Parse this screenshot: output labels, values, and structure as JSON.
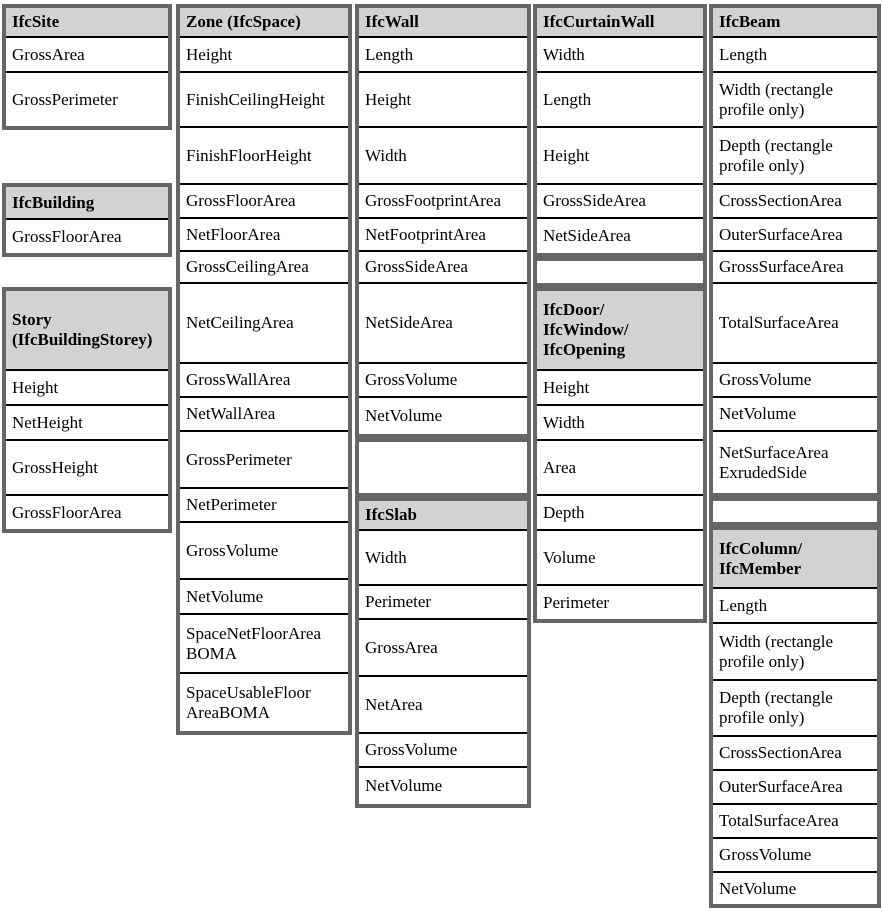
{
  "theme": {
    "page_bg": "#ffffff",
    "table_border": "#666666",
    "header_bg": "#d2d2d2",
    "row_divider": "#000000",
    "text_color": "#000000"
  },
  "columns": [
    {
      "name": "column-site-building-storey",
      "sections": [
        {
          "type": "table",
          "name": "ifcsite-table",
          "header": {
            "text": "IfcSite",
            "h": 28
          },
          "rows": [
            {
              "text": "GrossArea",
              "h": 35
            },
            {
              "text": "GrossPerimeter",
              "h": 55
            }
          ]
        },
        {
          "type": "gap",
          "h": 53
        },
        {
          "type": "table",
          "name": "ifcbuilding-table",
          "header": {
            "text": "IfcBuilding",
            "h": 31
          },
          "rows": [
            {
              "text": "GrossFloorArea",
              "h": 35
            }
          ]
        },
        {
          "type": "gap",
          "h": 30
        },
        {
          "type": "table",
          "name": "story-table",
          "header": {
            "text": "Story\n(IfcBuildingStorey)",
            "h": 78
          },
          "rows": [
            {
              "text": "Height",
              "h": 35
            },
            {
              "text": "NetHeight",
              "h": 35
            },
            {
              "text": "GrossHeight",
              "h": 55
            },
            {
              "text": "GrossFloorArea",
              "h": 35
            }
          ]
        }
      ]
    },
    {
      "name": "column-zone-space",
      "sections": [
        {
          "type": "table",
          "name": "zone-space-table",
          "header": {
            "text": "Zone (IfcSpace)",
            "h": 28
          },
          "rows": [
            {
              "text": "Height",
              "h": 35
            },
            {
              "text": "FinishCeilingHeight",
              "h": 55
            },
            {
              "text": "FinishFloorHeight",
              "h": 57
            },
            {
              "text": "GrossFloorArea",
              "h": 34
            },
            {
              "text": "NetFloorArea",
              "h": 33
            },
            {
              "text": "GrossCeilingArea",
              "h": 32
            },
            {
              "text": "NetCeilingArea",
              "h": 80
            },
            {
              "text": "GrossWallArea",
              "h": 34
            },
            {
              "text": "NetWallArea",
              "h": 34
            },
            {
              "text": "GrossPerimeter",
              "h": 57
            },
            {
              "text": "NetPerimeter",
              "h": 34
            },
            {
              "text": "GrossVolume",
              "h": 57
            },
            {
              "text": "NetVolume",
              "h": 35
            },
            {
              "text": "SpaceNetFloorArea\nBOMA",
              "h": 59
            },
            {
              "text": "SpaceUsableFloor\nAreaBOMA",
              "h": 59
            }
          ]
        }
      ]
    },
    {
      "name": "column-wall-slab",
      "sections": [
        {
          "type": "table",
          "name": "ifcwall-table",
          "header": {
            "text": "IfcWall",
            "h": 28
          },
          "rows": [
            {
              "text": "Length",
              "h": 35
            },
            {
              "text": "Height",
              "h": 55
            },
            {
              "text": "Width",
              "h": 57
            },
            {
              "text": "GrossFootprintArea",
              "h": 34
            },
            {
              "text": "NetFootprintArea",
              "h": 33
            },
            {
              "text": "GrossSideArea",
              "h": 32
            },
            {
              "text": "NetSideArea",
              "h": 80
            },
            {
              "text": "GrossVolume",
              "h": 34
            },
            {
              "text": "NetVolume",
              "h": 38
            }
          ]
        },
        {
          "type": "empty",
          "h": 59
        },
        {
          "type": "table",
          "name": "ifcslab-table",
          "header": {
            "text": "IfcSlab",
            "h": 28
          },
          "rows": [
            {
              "text": "Width",
              "h": 55
            },
            {
              "text": "Perimeter",
              "h": 34
            },
            {
              "text": "GrossArea",
              "h": 57
            },
            {
              "text": "NetArea",
              "h": 57
            },
            {
              "text": "GrossVolume",
              "h": 34
            },
            {
              "text": "NetVolume",
              "h": 38
            }
          ]
        }
      ]
    },
    {
      "name": "column-curtainwall-door",
      "sections": [
        {
          "type": "table",
          "name": "ifccurtainwall-table",
          "header": {
            "text": "IfcCurtainWall",
            "h": 28
          },
          "rows": [
            {
              "text": "Width",
              "h": 35
            },
            {
              "text": "Length",
              "h": 55
            },
            {
              "text": "Height",
              "h": 57
            },
            {
              "text": "GrossSideArea",
              "h": 34
            },
            {
              "text": "NetSideArea",
              "h": 36
            }
          ]
        },
        {
          "type": "empty",
          "h": 30
        },
        {
          "type": "table",
          "name": "ifcdoor-window-opening-table",
          "header": {
            "text": "IfcDoor/\nIfcWindow/\nIfcOpening",
            "h": 78
          },
          "rows": [
            {
              "text": "Height",
              "h": 35
            },
            {
              "text": "Width",
              "h": 35
            },
            {
              "text": "Area",
              "h": 55
            },
            {
              "text": "Depth",
              "h": 35
            },
            {
              "text": "Volume",
              "h": 55
            },
            {
              "text": "Perimeter",
              "h": 35
            }
          ]
        }
      ]
    },
    {
      "name": "column-beam-column",
      "sections": [
        {
          "type": "table",
          "name": "ifcbeam-table",
          "header": {
            "text": "IfcBeam",
            "h": 28
          },
          "rows": [
            {
              "text": "Length",
              "h": 35
            },
            {
              "text": "Width (rectangle\nprofile only)",
              "h": 55
            },
            {
              "text": "Depth (rectangle\nprofile only)",
              "h": 57
            },
            {
              "text": "CrossSectionArea",
              "h": 34
            },
            {
              "text": "OuterSurfaceArea",
              "h": 33
            },
            {
              "text": "GrossSurfaceArea",
              "h": 32
            },
            {
              "text": "TotalSurfaceArea",
              "h": 80
            },
            {
              "text": "GrossVolume",
              "h": 34
            },
            {
              "text": "NetVolume",
              "h": 34
            },
            {
              "text": "NetSurfaceArea\nExrudedSide",
              "h": 63
            }
          ]
        },
        {
          "type": "empty",
          "h": 29
        },
        {
          "type": "table",
          "name": "ifccolumn-member-table",
          "header": {
            "text": "IfcColumn/\nIfcMember",
            "h": 57
          },
          "rows": [
            {
              "text": "Length",
              "h": 35
            },
            {
              "text": "Width (rectangle\nprofile only)",
              "h": 57
            },
            {
              "text": "Depth (rectangle\nprofile only)",
              "h": 56
            },
            {
              "text": "CrossSectionArea",
              "h": 34
            },
            {
              "text": "OuterSurfaceArea",
              "h": 34
            },
            {
              "text": "TotalSurfaceArea",
              "h": 34
            },
            {
              "text": "GrossVolume",
              "h": 34
            },
            {
              "text": "NetVolume",
              "h": 33
            }
          ]
        }
      ]
    }
  ]
}
